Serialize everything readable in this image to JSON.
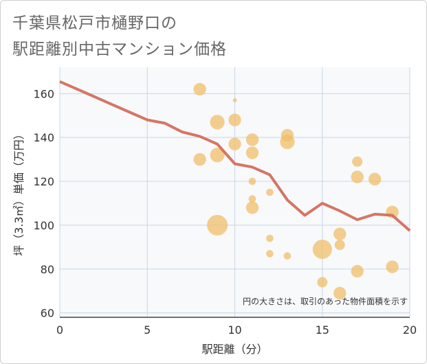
{
  "title_lines": [
    "千葉県松戸市樋野口の",
    "駅距離別中古マンション価格"
  ],
  "colors": {
    "bubble": "#f0be6a",
    "line": "#d36e5c",
    "grid": "#c8d6e4",
    "plot_bg": "#f7f9fb",
    "axis": "#444444"
  },
  "chart_data": {
    "type": "scatter",
    "title": "千葉県松戸市樋野口の駅距離別中古マンション価格",
    "xlabel": "駅距離（分）",
    "ylabel": "坪（3.3㎡）単価（万円）",
    "xlim": [
      0,
      20
    ],
    "ylim": [
      58,
      172
    ],
    "xticks": [
      0,
      5,
      10,
      15,
      20
    ],
    "yticks": [
      60,
      80,
      100,
      120,
      140,
      160
    ],
    "grid": true,
    "annotation": "円の大きさは、取引のあった物件面積を示す",
    "series": [
      {
        "type": "bubble",
        "points": [
          {
            "x": 8,
            "y": 162,
            "size": 3
          },
          {
            "x": 8,
            "y": 130,
            "size": 3
          },
          {
            "x": 9,
            "y": 147,
            "size": 4
          },
          {
            "x": 9,
            "y": 132,
            "size": 4
          },
          {
            "x": 9,
            "y": 100,
            "size": 8
          },
          {
            "x": 10,
            "y": 148,
            "size": 3
          },
          {
            "x": 10,
            "y": 137,
            "size": 3
          },
          {
            "x": 10,
            "y": 157,
            "size": 0.3
          },
          {
            "x": 11,
            "y": 139,
            "size": 3
          },
          {
            "x": 11,
            "y": 133,
            "size": 3
          },
          {
            "x": 11,
            "y": 120,
            "size": 1
          },
          {
            "x": 11,
            "y": 112,
            "size": 1
          },
          {
            "x": 11,
            "y": 108,
            "size": 3
          },
          {
            "x": 12,
            "y": 115,
            "size": 1
          },
          {
            "x": 12,
            "y": 94,
            "size": 1
          },
          {
            "x": 12,
            "y": 87,
            "size": 1
          },
          {
            "x": 13,
            "y": 141,
            "size": 3
          },
          {
            "x": 13,
            "y": 138,
            "size": 4
          },
          {
            "x": 13,
            "y": 86,
            "size": 1
          },
          {
            "x": 15,
            "y": 89,
            "size": 7
          },
          {
            "x": 15,
            "y": 74,
            "size": 2
          },
          {
            "x": 16,
            "y": 96,
            "size": 3
          },
          {
            "x": 16,
            "y": 91,
            "size": 2
          },
          {
            "x": 16,
            "y": 69,
            "size": 3
          },
          {
            "x": 17,
            "y": 129,
            "size": 2
          },
          {
            "x": 17,
            "y": 122,
            "size": 3
          },
          {
            "x": 17,
            "y": 79,
            "size": 3
          },
          {
            "x": 18,
            "y": 121,
            "size": 3
          },
          {
            "x": 19,
            "y": 106,
            "size": 3
          },
          {
            "x": 19,
            "y": 81,
            "size": 3
          }
        ]
      },
      {
        "type": "line",
        "x": [
          0,
          1,
          2,
          3,
          4,
          5,
          6,
          7,
          8,
          9,
          10,
          11,
          12,
          13,
          14,
          15,
          16,
          17,
          18,
          19,
          20
        ],
        "y": [
          165.5,
          162.0,
          158.5,
          155.0,
          151.5,
          148.0,
          146.5,
          142.5,
          140.5,
          137.0,
          128.0,
          126.5,
          123.0,
          111.5,
          104.5,
          110.0,
          106.5,
          102.5,
          105.0,
          104.5,
          97.5
        ]
      }
    ]
  }
}
